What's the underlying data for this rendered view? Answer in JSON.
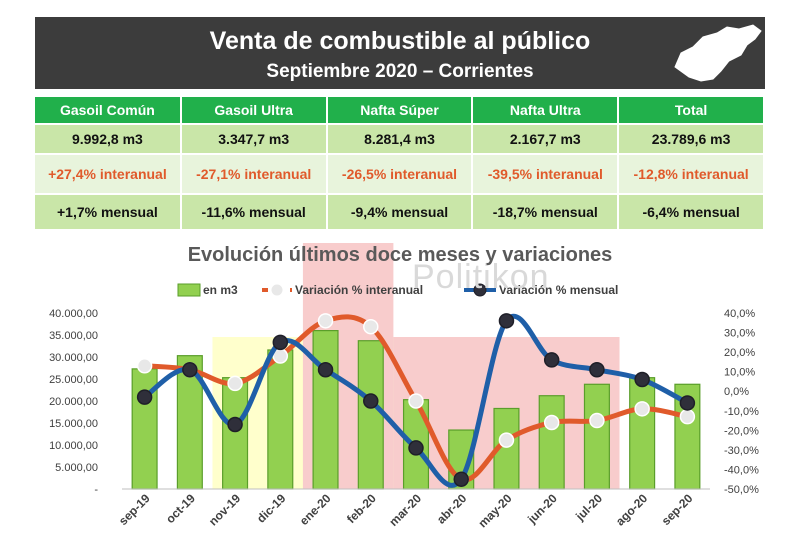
{
  "header": {
    "title": "Venta de combustible al público",
    "subtitle": "Septiembre 2020 – Corrientes",
    "bg_color": "#3c3c3c",
    "map_icon": "corrientes-province-map-icon"
  },
  "summary": {
    "columns": [
      "Gasoil Común",
      "Gasoil Ultra",
      "Nafta Súper",
      "Nafta Ultra",
      "Total"
    ],
    "volumes": [
      "9.992,8 m3",
      "3.347,7 m3",
      "8.281,4 m3",
      "2.167,7 m3",
      "23.789,6 m3"
    ],
    "yoy": [
      "+27,4% interanual",
      "-27,1% interanual",
      "-26,5% interanual",
      "-39,5% interanual",
      "-12,8% interanual"
    ],
    "mom": [
      "+1,7% mensual",
      "-11,6% mensual",
      "-9,4% mensual",
      "-18,7% mensual",
      "-6,4% mensual"
    ],
    "header_color": "#21b04b"
  },
  "watermark": "Politikon",
  "chart_data": {
    "type": "bar",
    "title": "Evolución últimos doce meses y variaciones",
    "categories": [
      "sep-19",
      "oct-19",
      "nov-19",
      "dic-19",
      "ene-20",
      "feb-20",
      "mar-20",
      "abr-20",
      "may-20",
      "jun-20",
      "jul-20",
      "ago-20",
      "sep-20"
    ],
    "series": [
      {
        "name": "en m3",
        "type": "bar",
        "axis": "left",
        "color": "#92d050",
        "values": [
          27300,
          30300,
          25300,
          31600,
          36000,
          33700,
          20300,
          13400,
          18300,
          21200,
          23800,
          25300,
          23800
        ]
      },
      {
        "name": "Variación % interanual",
        "type": "line",
        "axis": "right",
        "color": "#e05a2b",
        "values": [
          13,
          11,
          4,
          18,
          36,
          33,
          -5,
          -45,
          -25,
          -16,
          -15,
          -9,
          -13
        ]
      },
      {
        "name": "Variación % mensual",
        "type": "line",
        "axis": "right",
        "color": "#1f5fa8",
        "values": [
          -3,
          11,
          -17,
          25,
          11,
          -5,
          -29,
          -45,
          36,
          16,
          11,
          6,
          -6
        ]
      }
    ],
    "y_left": {
      "min": 0,
      "max": 40000,
      "step": 5000,
      "tick_labels": [
        "-",
        "5.000,00",
        "10.000,00",
        "15.000,00",
        "20.000,00",
        "25.000,00",
        "30.000,00",
        "35.000,00",
        "40.000,00"
      ]
    },
    "y_right": {
      "min": -50,
      "max": 40,
      "step": 10,
      "tick_labels": [
        "-50,0%",
        "-40,0%",
        "-30,0%",
        "-20,0%",
        "-10,0%",
        "0,0%",
        "10,0%",
        "20,0%",
        "30,0%",
        "40,0%"
      ]
    },
    "shaded_periods": [
      {
        "from": "nov-19",
        "to": "feb-20",
        "color": "#ffffcc"
      },
      {
        "from": "ene-20",
        "to": "feb-20",
        "color": "#f8cccc"
      },
      {
        "from": "mar-20",
        "to": "jul-20",
        "color": "#f8cccc"
      }
    ],
    "legend_position": "top",
    "grid": false
  }
}
